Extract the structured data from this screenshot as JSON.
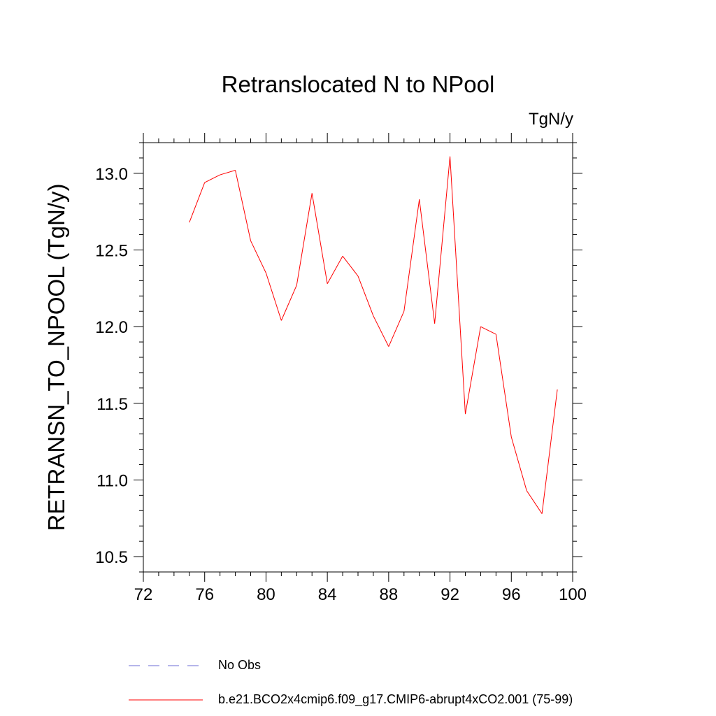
{
  "chart_data": {
    "type": "line",
    "title": "Retranslocated N to NPool",
    "units_label": "TgN/y",
    "xlabel": "",
    "ylabel": "RETRANSN_TO_NPOOL  (TgN/y)",
    "xlim": [
      72,
      100
    ],
    "ylim": [
      10.4,
      13.2
    ],
    "x_ticks": [
      72,
      76,
      80,
      84,
      88,
      92,
      96,
      100
    ],
    "x_tick_labels": [
      "72",
      "76",
      "80",
      "84",
      "88",
      "92",
      "96",
      "100"
    ],
    "y_ticks": [
      10.5,
      11.0,
      11.5,
      12.0,
      12.5,
      13.0
    ],
    "y_tick_labels": [
      "10.5",
      "11.0",
      "11.5",
      "12.0",
      "12.5",
      "13.0"
    ],
    "grid": false,
    "legend_position": "bottom",
    "series": [
      {
        "name": "b.e21.BCO2x4cmip6.f09_g17.CMIP6-abrupt4xCO2.001 (75-99)",
        "color": "#ff0000",
        "style": "solid",
        "x": [
          75,
          76,
          77,
          78,
          79,
          80,
          81,
          82,
          83,
          84,
          85,
          86,
          87,
          88,
          89,
          90,
          91,
          92,
          93,
          94,
          95,
          96,
          97,
          98,
          99
        ],
        "y": [
          12.68,
          12.94,
          12.99,
          13.02,
          12.56,
          12.35,
          12.04,
          12.27,
          12.87,
          12.28,
          12.46,
          12.33,
          12.07,
          11.87,
          12.1,
          12.83,
          12.02,
          13.11,
          11.43,
          12.0,
          11.95,
          11.28,
          10.93,
          10.78,
          11.59
        ]
      }
    ],
    "legend": [
      {
        "name": "No Obs",
        "color": "#6b6bd6",
        "style": "dashed"
      },
      {
        "name": "b.e21.BCO2x4cmip6.f09_g17.CMIP6-abrupt4xCO2.001 (75-99)",
        "color": "#ff0000",
        "style": "solid"
      }
    ]
  }
}
